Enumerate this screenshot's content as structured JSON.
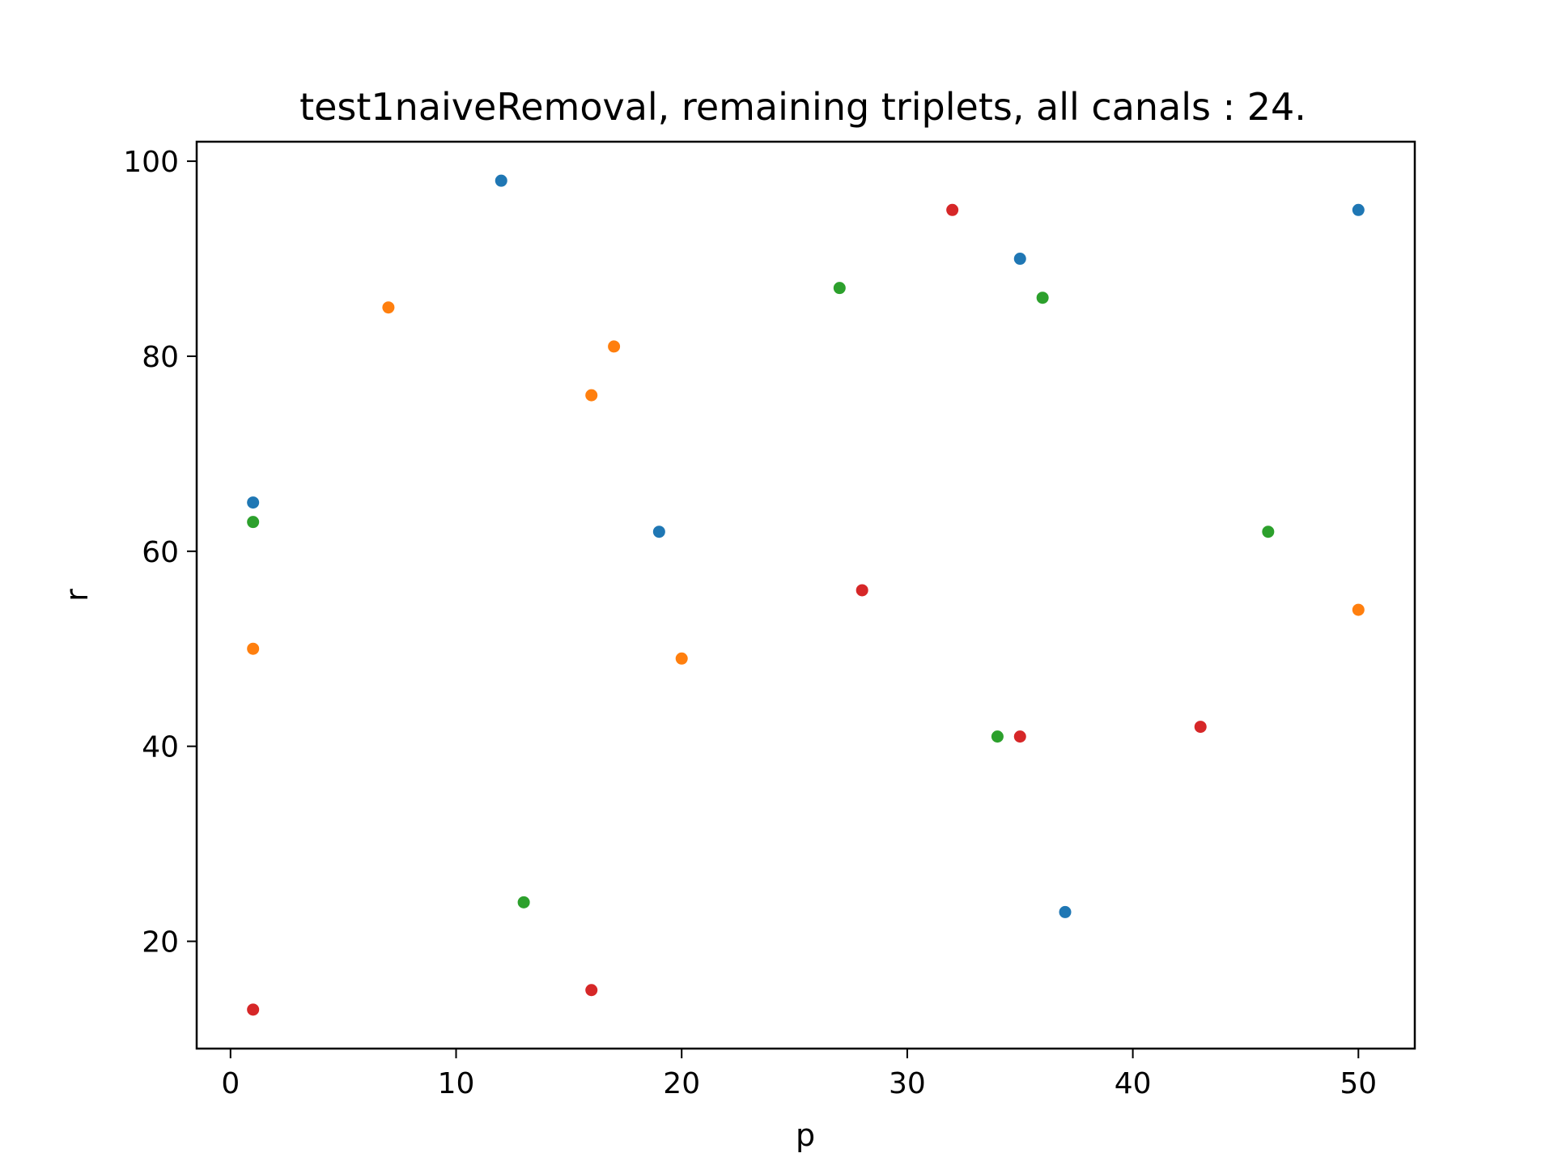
{
  "chart_data": {
    "type": "scatter",
    "title": "test1naiveRemoval, remaining triplets, all canals : 24.",
    "xlabel": "p",
    "ylabel": "r",
    "xlim": [
      -1.5,
      52.5
    ],
    "ylim": [
      9,
      102
    ],
    "xticks": [
      0,
      10,
      20,
      30,
      40,
      50
    ],
    "yticks": [
      20,
      40,
      60,
      80,
      100
    ],
    "grid": false,
    "legend": "none",
    "series": [
      {
        "color": "#1f77b4",
        "points": [
          {
            "x": 1,
            "y": 65
          },
          {
            "x": 12,
            "y": 98
          },
          {
            "x": 19,
            "y": 62
          },
          {
            "x": 35,
            "y": 90
          },
          {
            "x": 37,
            "y": 23
          },
          {
            "x": 50,
            "y": 95
          }
        ]
      },
      {
        "color": "#ff7f0e",
        "points": [
          {
            "x": 1,
            "y": 50
          },
          {
            "x": 7,
            "y": 85
          },
          {
            "x": 16,
            "y": 76
          },
          {
            "x": 17,
            "y": 81
          },
          {
            "x": 20,
            "y": 49
          },
          {
            "x": 50,
            "y": 54
          }
        ]
      },
      {
        "color": "#2ca02c",
        "points": [
          {
            "x": 1,
            "y": 63
          },
          {
            "x": 13,
            "y": 24
          },
          {
            "x": 27,
            "y": 87
          },
          {
            "x": 34,
            "y": 41
          },
          {
            "x": 36,
            "y": 86
          },
          {
            "x": 46,
            "y": 62
          }
        ]
      },
      {
        "color": "#d62728",
        "points": [
          {
            "x": 1,
            "y": 13
          },
          {
            "x": 16,
            "y": 15
          },
          {
            "x": 28,
            "y": 56
          },
          {
            "x": 32,
            "y": 95
          },
          {
            "x": 35,
            "y": 41
          },
          {
            "x": 43,
            "y": 42
          }
        ]
      }
    ]
  }
}
